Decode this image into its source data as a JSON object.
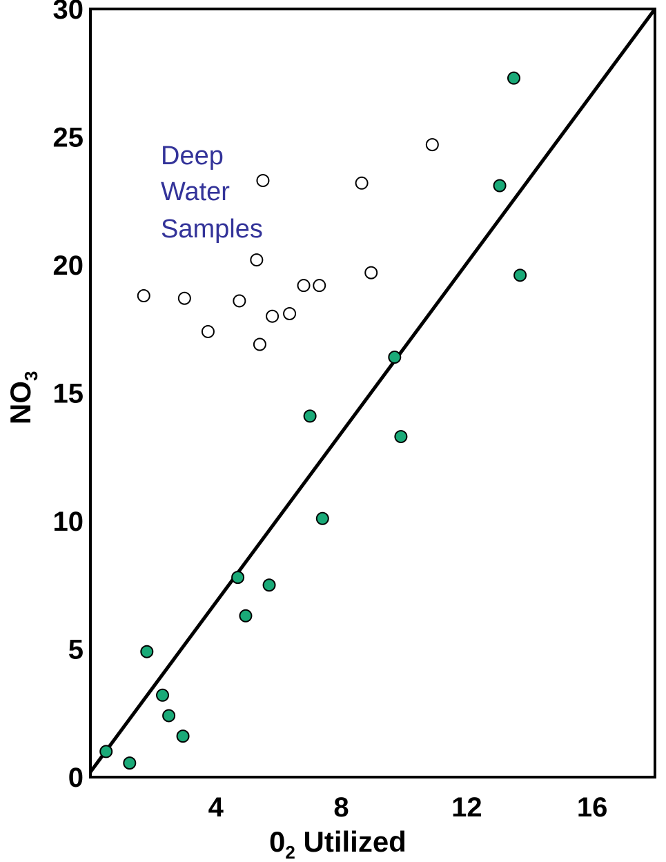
{
  "chart_data": {
    "type": "scatter",
    "xlim": [
      0,
      18
    ],
    "ylim": [
      0,
      30
    ],
    "x_ticks": [
      4,
      8,
      12,
      16
    ],
    "y_ticks": [
      0,
      5,
      10,
      15,
      20,
      25,
      30
    ],
    "xlabel": {
      "main": "0",
      "sub": "2",
      "rest": " Utilized"
    },
    "ylabel": {
      "main": "NO",
      "sub": "3"
    },
    "grid": false,
    "annotation": {
      "lines": [
        "Deep",
        "Water",
        "Samples"
      ],
      "color": "#333399"
    },
    "fit_line": {
      "x1": 0,
      "y1": 0.2,
      "x2": 18,
      "y2": 30
    },
    "series": [
      {
        "marker": "filled",
        "color": "#1aaa78",
        "points": [
          [
            0.5,
            1.0
          ],
          [
            1.25,
            0.55
          ],
          [
            1.8,
            4.9
          ],
          [
            2.3,
            3.2
          ],
          [
            2.5,
            2.4
          ],
          [
            2.95,
            1.6
          ],
          [
            4.7,
            7.8
          ],
          [
            4.95,
            6.3
          ],
          [
            5.7,
            7.5
          ],
          [
            7.0,
            14.1
          ],
          [
            7.4,
            10.1
          ],
          [
            9.7,
            16.4
          ],
          [
            9.9,
            13.3
          ],
          [
            13.05,
            23.1
          ],
          [
            13.5,
            27.3
          ],
          [
            13.7,
            19.6
          ]
        ]
      },
      {
        "marker": "open",
        "color": "#ffffff",
        "points": [
          [
            1.7,
            18.8
          ],
          [
            3.0,
            18.7
          ],
          [
            3.75,
            17.4
          ],
          [
            4.75,
            18.6
          ],
          [
            5.3,
            20.2
          ],
          [
            5.4,
            16.9
          ],
          [
            5.5,
            23.3
          ],
          [
            5.8,
            18.0
          ],
          [
            6.35,
            18.1
          ],
          [
            6.8,
            19.2
          ],
          [
            7.3,
            19.2
          ],
          [
            8.65,
            23.2
          ],
          [
            8.95,
            19.7
          ],
          [
            10.9,
            24.7
          ]
        ]
      }
    ]
  }
}
